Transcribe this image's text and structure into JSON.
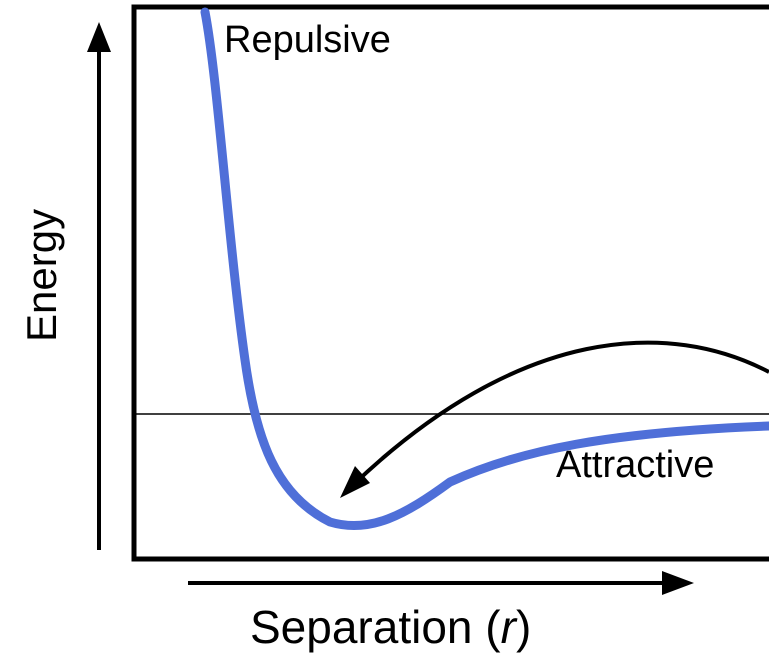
{
  "diagram": {
    "labels": {
      "y_axis": "Energy",
      "x_axis_main": "Separation (",
      "x_axis_var": "r",
      "x_axis_close": ")",
      "repulsive": "Repulsive",
      "attractive": "Attractive"
    },
    "colors": {
      "curve": "#4f6fd8",
      "axes": "#000000",
      "background": "#ffffff"
    },
    "elements": {
      "curve": "potential energy curve",
      "zero_line": "zero energy reference line",
      "arrow": "curved arrow pointing to energy minimum"
    }
  }
}
